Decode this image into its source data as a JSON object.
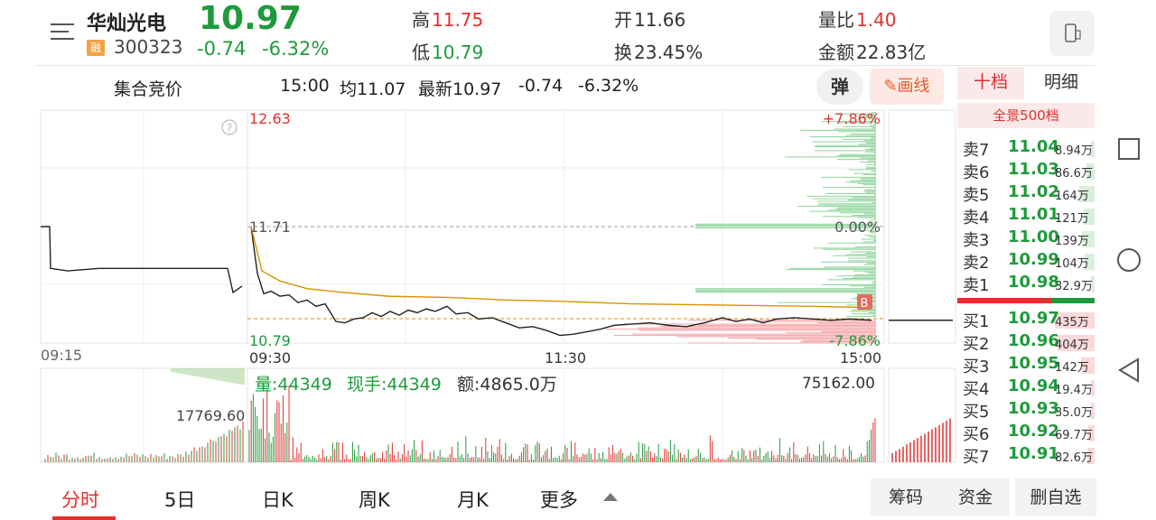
{
  "header": {
    "stock_name": "华灿光电",
    "rong_badge": "融",
    "stock_code": "300323",
    "price": "10.97",
    "change": "-0.74",
    "change_pct": "-6.32%",
    "high_label": "高",
    "high_value": "11.75",
    "low_label": "低",
    "low_value": "10.79",
    "open_label": "开",
    "open_value": "11.66",
    "turnover_label": "换",
    "turnover_value": "23.45%",
    "vol_ratio_label": "量比",
    "vol_ratio_value": "1.40",
    "amount_label": "金额",
    "amount_value": "22.83亿"
  },
  "subheader": {
    "auction_label": "集合竞价",
    "time": "15:00",
    "avg_label": "均11.07",
    "latest_label": "最新10.97",
    "change": "-0.74",
    "change_pct": "-6.32%",
    "barrage_label": "弹",
    "draw_label": "画线"
  },
  "chart_labels": {
    "top_price": "12.63",
    "mid_price": "11.71",
    "bottom_price": "10.79",
    "top_pct": "+7.86%",
    "mid_pct": "0.00%",
    "bottom_pct": "-7.86%",
    "time_0915": "09:15",
    "time_0930": "09:30",
    "time_1130": "11:30",
    "time_1500": "15:00",
    "help": "?",
    "b_marker": "B",
    "auction_vol_peak": "17769.60",
    "volume_line": "量:44349",
    "now_hand": "现手:44349",
    "amount_line": "额:4865.0万",
    "vol_max": "75162.00"
  },
  "orderbook": {
    "tab_ten": "十档",
    "tab_detail": "明细",
    "full_depth": "全景500档",
    "asks": [
      {
        "label": "卖7",
        "price": "11.04",
        "vol": "8.94万",
        "frac": 0.05
      },
      {
        "label": "卖6",
        "price": "11.03",
        "vol": "86.6万",
        "frac": 0.2
      },
      {
        "label": "卖5",
        "price": "11.02",
        "vol": "164万",
        "frac": 0.38
      },
      {
        "label": "卖4",
        "price": "11.01",
        "vol": "121万",
        "frac": 0.28
      },
      {
        "label": "卖3",
        "price": "11.00",
        "vol": "139万",
        "frac": 0.32
      },
      {
        "label": "卖2",
        "price": "10.99",
        "vol": "104万",
        "frac": 0.24
      },
      {
        "label": "卖1",
        "price": "10.98",
        "vol": "32.9万",
        "frac": 0.08
      }
    ],
    "bids": [
      {
        "label": "买1",
        "price": "10.97",
        "vol": "435万",
        "frac": 1.0
      },
      {
        "label": "买2",
        "price": "10.96",
        "vol": "404万",
        "frac": 0.93
      },
      {
        "label": "买3",
        "price": "10.95",
        "vol": "142万",
        "frac": 0.33
      },
      {
        "label": "买4",
        "price": "10.94",
        "vol": "19.4万",
        "frac": 0.05
      },
      {
        "label": "买5",
        "price": "10.93",
        "vol": "35.0万",
        "frac": 0.08
      },
      {
        "label": "买6",
        "price": "10.92",
        "vol": "69.7万",
        "frac": 0.16
      },
      {
        "label": "买7",
        "price": "10.91",
        "vol": "82.6万",
        "frac": 0.19
      }
    ]
  },
  "bottom_tabs": [
    "分时",
    "5日",
    "日K",
    "周K",
    "月K",
    "更多"
  ],
  "bottom_buttons": [
    "筹码",
    "资金",
    "删自选"
  ],
  "colors": {
    "up": "#e0302f",
    "down": "#1f9a3a",
    "avg": "#d99200"
  }
}
